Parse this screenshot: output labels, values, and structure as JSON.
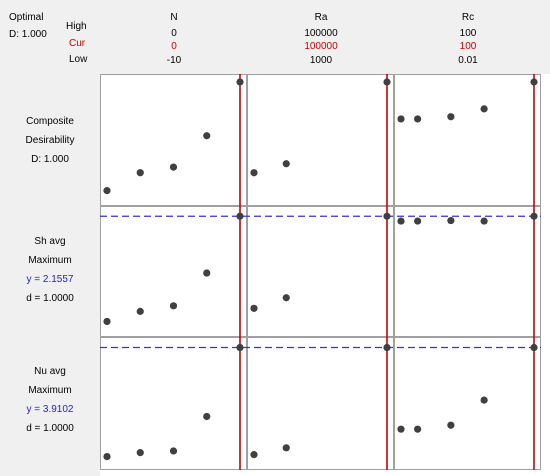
{
  "header": {
    "optimal_label": "Optimal",
    "composite_d": "D: 1.000",
    "high_label": "High",
    "cur_label": "Cur",
    "low_label": "Low",
    "factors": [
      {
        "name": "N",
        "high": "0",
        "cur": "0",
        "low": "-10"
      },
      {
        "name": "Ra",
        "high": "100000",
        "cur": "100000",
        "low": "1000"
      },
      {
        "name": "Rc",
        "high": "100",
        "cur": "100",
        "low": "0.01"
      }
    ]
  },
  "rows": [
    {
      "line1": "Composite",
      "line2": "Desirability",
      "line3": "D: 1.000"
    },
    {
      "line1": "Sh avg",
      "line2": "Maximum",
      "line3": "y = 2.1557",
      "line4": "d = 1.0000"
    },
    {
      "line1": "Nu avg",
      "line2": "Maximum",
      "line3": "y = 3.9102",
      "line4": "d = 1.0000"
    }
  ],
  "colors": {
    "background": "#ffffff",
    "panel_border": "#a0a0a0",
    "points": "#404040",
    "current_setting_line": "#cc0000",
    "optimal_response_line": "#3333dd",
    "label_panel": "#f0f0f0"
  },
  "chart_data": {
    "type": "scatter",
    "grid": false,
    "factors": [
      "N",
      "Ra",
      "Rc"
    ],
    "x_ranges": [
      [
        -10,
        0
      ],
      [
        1000,
        100000
      ],
      [
        0.01,
        100
      ]
    ],
    "current_x": [
      0,
      100000,
      100
    ],
    "responses": [
      {
        "name": "Composite Desirability",
        "ylim": [
          0,
          1
        ],
        "optimum_y": 1.0,
        "points": [
          [
            [
              -10,
              0.03
            ],
            [
              -7.5,
              0.19
            ],
            [
              -5,
              0.24
            ],
            [
              -2.5,
              0.52
            ],
            [
              0,
              1.0
            ]
          ],
          [
            [
              1000,
              0.19
            ],
            [
              25000,
              0.27
            ],
            [
              100000,
              1.0
            ]
          ],
          [
            [
              0.01,
              0.67
            ],
            [
              12.5,
              0.67
            ],
            [
              37.5,
              0.69
            ],
            [
              62.5,
              0.76
            ],
            [
              100,
              1.0
            ]
          ]
        ]
      },
      {
        "name": "Sh avg",
        "ylim": [
          0,
          2.2
        ],
        "optimum_y": 2.1557,
        "points": [
          [
            [
              -10,
              0.07
            ],
            [
              -7.5,
              0.27
            ],
            [
              -5,
              0.38
            ],
            [
              -2.5,
              1.03
            ],
            [
              0,
              2.1557
            ]
          ],
          [
            [
              1000,
              0.33
            ],
            [
              25000,
              0.54
            ],
            [
              100000,
              2.1557
            ]
          ],
          [
            [
              0.01,
              2.06
            ],
            [
              12.5,
              2.06
            ],
            [
              37.5,
              2.07
            ],
            [
              62.5,
              2.06
            ],
            [
              100,
              2.1557
            ]
          ]
        ]
      },
      {
        "name": "Nu avg",
        "ylim": [
          0,
          4
        ],
        "optimum_y": 3.9102,
        "points": [
          [
            [
              -10,
              0.05
            ],
            [
              -7.5,
              0.19
            ],
            [
              -5,
              0.25
            ],
            [
              -2.5,
              1.47
            ],
            [
              0,
              3.9102
            ]
          ],
          [
            [
              1000,
              0.12
            ],
            [
              25000,
              0.36
            ],
            [
              100000,
              3.9102
            ]
          ],
          [
            [
              0.01,
              1.02
            ],
            [
              12.5,
              1.02
            ],
            [
              37.5,
              1.16
            ],
            [
              62.5,
              2.05
            ],
            [
              100,
              3.9102
            ]
          ]
        ]
      }
    ]
  }
}
